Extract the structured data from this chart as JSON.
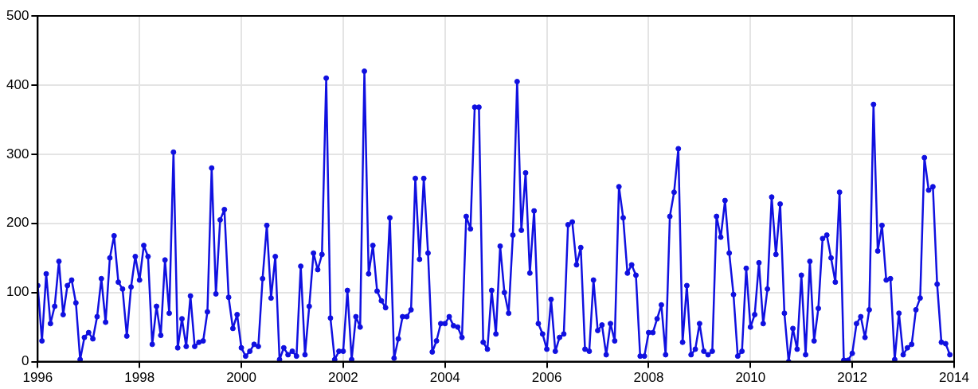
{
  "chart_data": {
    "type": "line",
    "color": "#1010e0",
    "marker": "circle",
    "line_style": "solid",
    "grid": true,
    "legend": false,
    "xlim": [
      "1996",
      "2014"
    ],
    "xticks": [
      "1996",
      "1998",
      "2000",
      "2002",
      "2004",
      "2006",
      "2008",
      "2010",
      "2012",
      "2014"
    ],
    "ylim": [
      0,
      500
    ],
    "yticks": [
      0,
      100,
      200,
      300,
      400,
      500
    ],
    "x": [
      "1996-01",
      "1996-02",
      "1996-03",
      "1996-04",
      "1996-05",
      "1996-06",
      "1996-07",
      "1996-08",
      "1996-09",
      "1996-10",
      "1996-11",
      "1996-12",
      "1997-01",
      "1997-02",
      "1997-03",
      "1997-04",
      "1997-05",
      "1997-06",
      "1997-07",
      "1997-08",
      "1997-09",
      "1997-10",
      "1997-11",
      "1997-12",
      "1998-01",
      "1998-02",
      "1998-03",
      "1998-04",
      "1998-05",
      "1998-06",
      "1998-07",
      "1998-08",
      "1998-09",
      "1998-10",
      "1998-11",
      "1998-12",
      "1999-01",
      "1999-02",
      "1999-03",
      "1999-04",
      "1999-05",
      "1999-06",
      "1999-07",
      "1999-08",
      "1999-09",
      "1999-10",
      "1999-11",
      "1999-12",
      "2000-01",
      "2000-02",
      "2000-03",
      "2000-04",
      "2000-05",
      "2000-06",
      "2000-07",
      "2000-08",
      "2000-09",
      "2000-10",
      "2000-11",
      "2000-12",
      "2001-01",
      "2001-02",
      "2001-03",
      "2001-04",
      "2001-05",
      "2001-06",
      "2001-07",
      "2001-08",
      "2001-09",
      "2001-10",
      "2001-11",
      "2001-12",
      "2002-01",
      "2002-02",
      "2002-03",
      "2002-04",
      "2002-05",
      "2002-06",
      "2002-07",
      "2002-08",
      "2002-09",
      "2002-10",
      "2002-11",
      "2002-12",
      "2003-01",
      "2003-02",
      "2003-03",
      "2003-04",
      "2003-05",
      "2003-06",
      "2003-07",
      "2003-08",
      "2003-09",
      "2003-10",
      "2003-11",
      "2003-12",
      "2004-01",
      "2004-02",
      "2004-03",
      "2004-04",
      "2004-05",
      "2004-06",
      "2004-07",
      "2004-08",
      "2004-09",
      "2004-10",
      "2004-11",
      "2004-12",
      "2005-01",
      "2005-02",
      "2005-03",
      "2005-04",
      "2005-05",
      "2005-06",
      "2005-07",
      "2005-08",
      "2005-09",
      "2005-10",
      "2005-11",
      "2005-12",
      "2006-01",
      "2006-02",
      "2006-03",
      "2006-04",
      "2006-05",
      "2006-06",
      "2006-07",
      "2006-08",
      "2006-09",
      "2006-10",
      "2006-11",
      "2006-12",
      "2007-01",
      "2007-02",
      "2007-03",
      "2007-04",
      "2007-05",
      "2007-06",
      "2007-07",
      "2007-08",
      "2007-09",
      "2007-10",
      "2007-11",
      "2007-12",
      "2008-01",
      "2008-02",
      "2008-03",
      "2008-04",
      "2008-05",
      "2008-06",
      "2008-07",
      "2008-08",
      "2008-09",
      "2008-10",
      "2008-11",
      "2008-12",
      "2009-01",
      "2009-02",
      "2009-03",
      "2009-04",
      "2009-05",
      "2009-06",
      "2009-07",
      "2009-08",
      "2009-09",
      "2009-10",
      "2009-11",
      "2009-12",
      "2010-01",
      "2010-02",
      "2010-03",
      "2010-04",
      "2010-05",
      "2010-06",
      "2010-07",
      "2010-08",
      "2010-09",
      "2010-10",
      "2010-11",
      "2010-12",
      "2011-01",
      "2011-02",
      "2011-03",
      "2011-04",
      "2011-05",
      "2011-06",
      "2011-07",
      "2011-08",
      "2011-09",
      "2011-10",
      "2011-11",
      "2011-12",
      "2012-01",
      "2012-02",
      "2012-03",
      "2012-04",
      "2012-05",
      "2012-06",
      "2012-07",
      "2012-08",
      "2012-09",
      "2012-10",
      "2012-11",
      "2012-12",
      "2013-01",
      "2013-02",
      "2013-03",
      "2013-04",
      "2013-05",
      "2013-06",
      "2013-07",
      "2013-08",
      "2013-09",
      "2013-10",
      "2013-11",
      "2013-12"
    ],
    "values": [
      110,
      30,
      127,
      55,
      80,
      145,
      68,
      110,
      118,
      85,
      3,
      35,
      42,
      33,
      65,
      120,
      57,
      150,
      182,
      115,
      105,
      37,
      108,
      152,
      118,
      168,
      152,
      25,
      80,
      38,
      147,
      70,
      303,
      20,
      62,
      22,
      95,
      22,
      28,
      30,
      72,
      280,
      98,
      205,
      220,
      93,
      48,
      68,
      20,
      8,
      15,
      25,
      22,
      120,
      197,
      92,
      152,
      3,
      20,
      10,
      15,
      8,
      138,
      10,
      80,
      157,
      133,
      155,
      410,
      63,
      3,
      15,
      15,
      103,
      3,
      65,
      50,
      420,
      127,
      168,
      102,
      88,
      78,
      208,
      5,
      33,
      65,
      65,
      75,
      265,
      148,
      265,
      157,
      14,
      30,
      55,
      55,
      65,
      52,
      50,
      35,
      210,
      192,
      368,
      368,
      28,
      18,
      103,
      40,
      167,
      100,
      70,
      183,
      405,
      190,
      273,
      128,
      218,
      55,
      40,
      18,
      90,
      15,
      35,
      40,
      198,
      202,
      140,
      165,
      18,
      15,
      118,
      45,
      53,
      10,
      55,
      30,
      253,
      208,
      128,
      140,
      125,
      8,
      8,
      42,
      42,
      62,
      82,
      10,
      210,
      245,
      308,
      28,
      110,
      10,
      18,
      55,
      15,
      10,
      15,
      210,
      180,
      233,
      157,
      97,
      8,
      15,
      135,
      50,
      68,
      143,
      55,
      105,
      238,
      155,
      228,
      70,
      0,
      48,
      18,
      125,
      10,
      145,
      30,
      77,
      178,
      183,
      150,
      115,
      245,
      2,
      2,
      12,
      55,
      65,
      35,
      75,
      372,
      160,
      197,
      118,
      120,
      3,
      70,
      10,
      20,
      25,
      75,
      92,
      295,
      248,
      253,
      112,
      28,
      26,
      10
    ]
  }
}
